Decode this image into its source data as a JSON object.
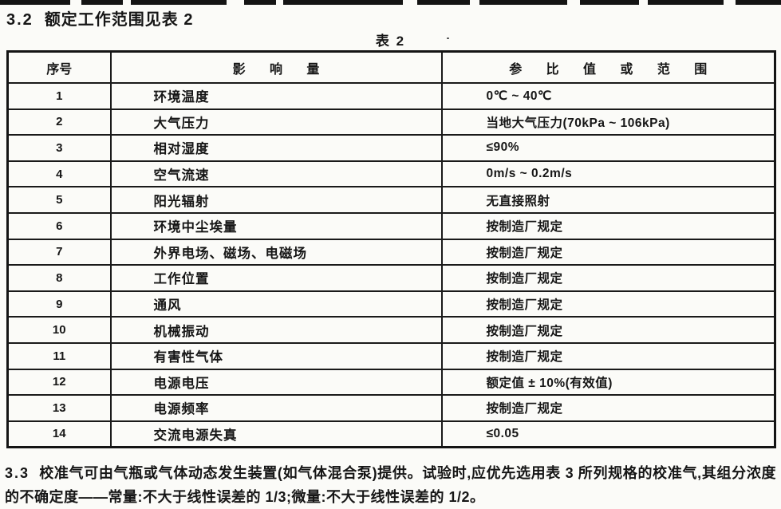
{
  "colors": {
    "ink": "#161616",
    "paper": "#fbfbf8"
  },
  "section_32": {
    "num": "3.2",
    "title": "额定工作范围见表 2"
  },
  "table_caption": "表 2",
  "table": {
    "headers": {
      "no": "序号",
      "factor": "影响量",
      "range": "参比值或范围"
    },
    "rows": [
      {
        "no": "1",
        "factor": "环境温度",
        "value": "0℃ ~ 40℃"
      },
      {
        "no": "2",
        "factor": "大气压力",
        "value": "当地大气压力(70kPa ~ 106kPa)"
      },
      {
        "no": "3",
        "factor": "相对湿度",
        "value": "≤90%"
      },
      {
        "no": "4",
        "factor": "空气流速",
        "value": "0m/s ~ 0.2m/s"
      },
      {
        "no": "5",
        "factor": "阳光辐射",
        "value": "无直接照射"
      },
      {
        "no": "6",
        "factor": "环境中尘埃量",
        "value": "按制造厂规定"
      },
      {
        "no": "7",
        "factor": "外界电场、磁场、电磁场",
        "value": "按制造厂规定"
      },
      {
        "no": "8",
        "factor": "工作位置",
        "value": "按制造厂规定"
      },
      {
        "no": "9",
        "factor": "通风",
        "value": "按制造厂规定"
      },
      {
        "no": "10",
        "factor": "机械振动",
        "value": "按制造厂规定"
      },
      {
        "no": "11",
        "factor": "有害性气体",
        "value": "按制造厂规定"
      },
      {
        "no": "12",
        "factor": "电源电压",
        "value": "额定值 ± 10%(有效值)"
      },
      {
        "no": "13",
        "factor": "电源频率",
        "value": "按制造厂规定"
      },
      {
        "no": "14",
        "factor": "交流电源失真",
        "value": "≤0.05"
      }
    ]
  },
  "section_33": {
    "num": "3.3",
    "text": "校准气可由气瓶或气体动态发生装置(如气体混合泵)提供。试验时,应优先选用表 3 所列规格的校准气,其组分浓度的不确定度——常量:不大于线性误差的 1/3;微量:不大于线性误差的 1/2。"
  }
}
